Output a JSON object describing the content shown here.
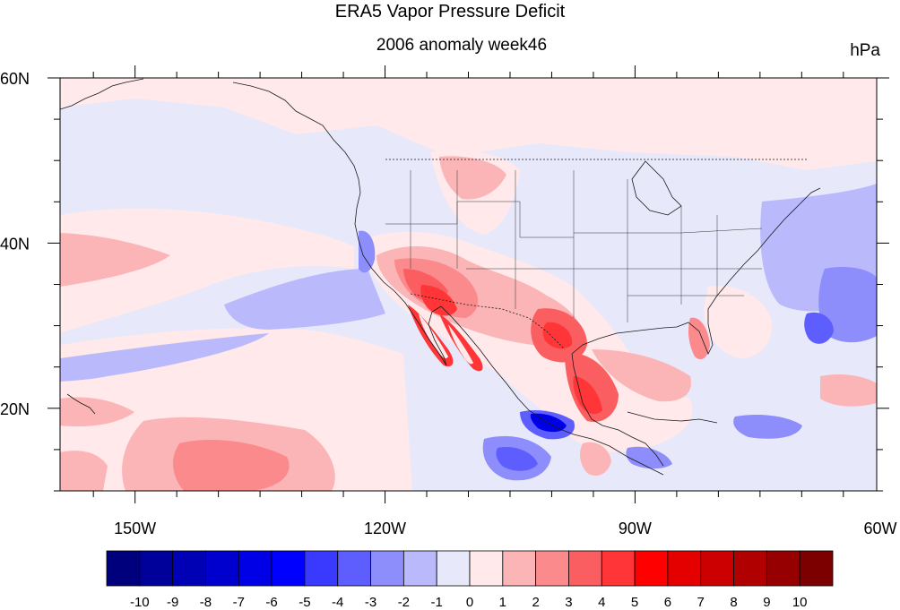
{
  "title": "ERA5 Vapor Pressure Deficit",
  "subtitle": "2006 anomaly week46",
  "units": "hPa",
  "map": {
    "projection": "cylindrical-equidistant",
    "lon_range": [
      -159,
      -61
    ],
    "lat_range": [
      10,
      60
    ],
    "lon_ticks": [
      {
        "value": -150,
        "label": "150W"
      },
      {
        "value": -120,
        "label": "120W"
      },
      {
        "value": -90,
        "label": "90W"
      },
      {
        "value": -60,
        "label": "60W"
      }
    ],
    "lat_ticks": [
      {
        "value": 60,
        "label": "60N"
      },
      {
        "value": 40,
        "label": "40N"
      },
      {
        "value": 20,
        "label": "20N"
      }
    ],
    "colors": {
      "background_near_zero_pos": "#ffe9ea",
      "background_near_zero_neg": "#e8e8fb"
    }
  },
  "colorbar": {
    "labels": [
      "-10",
      "-9",
      "-8",
      "-7",
      "-6",
      "-5",
      "-4",
      "-3",
      "-2",
      "-1",
      "0",
      "1",
      "2",
      "3",
      "4",
      "5",
      "6",
      "7",
      "8",
      "9",
      "10"
    ],
    "colors": [
      "#00007c",
      "#00009a",
      "#0000b4",
      "#0000ce",
      "#0000e6",
      "#0000ff",
      "#3a3aff",
      "#5e5eff",
      "#8d8dfb",
      "#b9b9fb",
      "#e8e8fb",
      "#ffe9ea",
      "#fbb5b7",
      "#fb8a8c",
      "#fb5e61",
      "#ff3537",
      "#ff0000",
      "#e50000",
      "#cc0000",
      "#b10000",
      "#960000",
      "#7c0000"
    ]
  }
}
